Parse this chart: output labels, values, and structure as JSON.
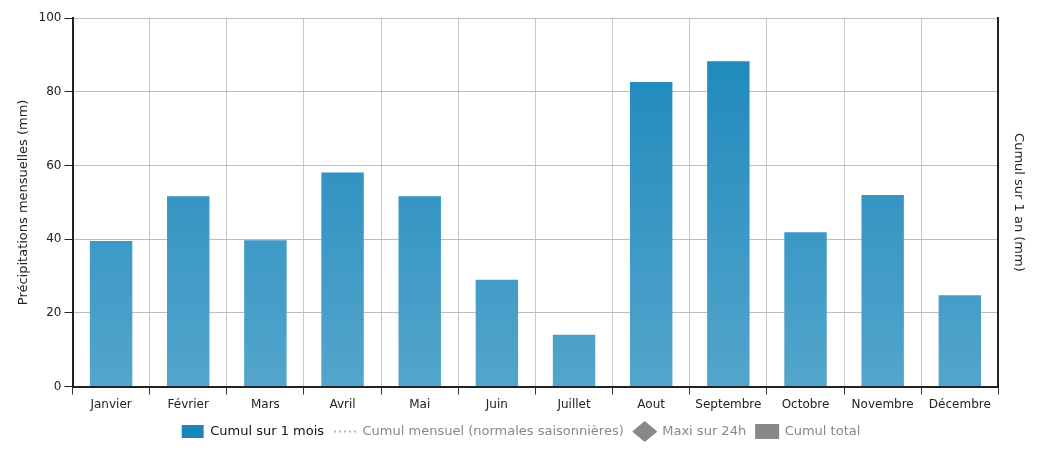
{
  "chart_data": {
    "type": "bar",
    "categories": [
      "Janvier",
      "Février",
      "Mars",
      "Avril",
      "Mai",
      "Juin",
      "Juillet",
      "Aout",
      "Septembre",
      "Octobre",
      "Novembre",
      "Décembre"
    ],
    "series": [
      {
        "name": "Cumul sur 1 mois",
        "color": "#1a87bb",
        "values": [
          39.5,
          51.7,
          39.7,
          58.1,
          51.7,
          29,
          14.1,
          82.7,
          88.3,
          41.9,
          52,
          24.8
        ]
      },
      {
        "name": "Cumul mensuel (normales saisonnières)",
        "type": "line",
        "line_style": "dotted",
        "marker": "none",
        "color": "#bbbbbb",
        "values": [
          null,
          null,
          null,
          null,
          null,
          null,
          null,
          null,
          null,
          null,
          null,
          null
        ]
      },
      {
        "name": "Maxi sur 24h",
        "type": "line",
        "marker": "diamond",
        "color": "#888888",
        "values": [
          null,
          null,
          null,
          null,
          null,
          null,
          null,
          null,
          null,
          null,
          null,
          null
        ]
      },
      {
        "name": "Cumul total",
        "type": "line",
        "marker": "square",
        "color": "#888888",
        "values": [
          null,
          null,
          null,
          null,
          null,
          null,
          null,
          null,
          null,
          null,
          null,
          null
        ]
      }
    ],
    "ylabel": "Précipitations mensuelles (mm)",
    "y2label": "Cumul sur 1 an (mm)",
    "ylim": [
      0,
      100
    ],
    "yticks": [
      0,
      20,
      40,
      60,
      80,
      100
    ],
    "grid": true,
    "legend": "bottom"
  }
}
